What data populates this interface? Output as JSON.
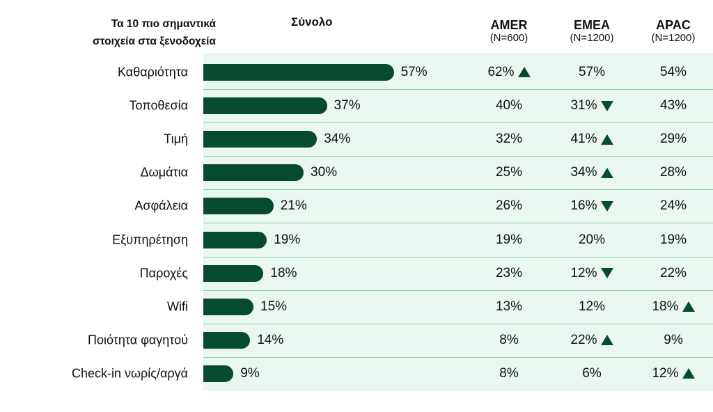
{
  "header": {
    "left_title_line1": "Τα 10 πιο σημαντικά",
    "left_title_line2": "στοιχεία στα ξενοδοχεία",
    "total_title": "Σύνολο",
    "regions": [
      {
        "name": "AMER",
        "n": "(N=600)"
      },
      {
        "name": "EMEA",
        "n": "(N=1200)"
      },
      {
        "name": "APAC",
        "n": "(N=1200)"
      }
    ]
  },
  "chart_data": {
    "type": "bar",
    "orientation": "horizontal",
    "title": "Σύνολο",
    "categories": [
      "Καθαριότητα",
      "Τοποθεσία",
      "Τιμή",
      "Δωμάτια",
      "Ασφάλεια",
      "Εξυπηρέτηση",
      "Παροχές",
      "Wifi",
      "Ποιότητα φαγητού",
      "Check-in νωρίς/αργά"
    ],
    "values": [
      57,
      37,
      34,
      30,
      21,
      19,
      18,
      15,
      14,
      9
    ],
    "value_labels": [
      "57%",
      "37%",
      "34%",
      "30%",
      "21%",
      "19%",
      "18%",
      "15%",
      "14%",
      "9%"
    ],
    "xlim": [
      0,
      60
    ],
    "bar_color": "#064a2f",
    "table_series": [
      {
        "name": "AMER",
        "values": [
          "62%",
          "40%",
          "32%",
          "25%",
          "26%",
          "19%",
          "23%",
          "13%",
          "8%",
          "8%"
        ],
        "markers": [
          "up",
          "",
          "",
          "",
          "",
          "",
          "",
          "",
          "",
          ""
        ]
      },
      {
        "name": "EMEA",
        "values": [
          "57%",
          "31%",
          "41%",
          "34%",
          "16%",
          "20%",
          "12%",
          "12%",
          "22%",
          "6%"
        ],
        "markers": [
          "",
          "down",
          "up",
          "up",
          "down",
          "",
          "down",
          "",
          "up",
          ""
        ]
      },
      {
        "name": "APAC",
        "values": [
          "54%",
          "43%",
          "29%",
          "28%",
          "24%",
          "19%",
          "22%",
          "18%",
          "9%",
          "12%"
        ],
        "markers": [
          "",
          "",
          "",
          "",
          "",
          "",
          "",
          "up",
          "",
          "up"
        ]
      }
    ]
  },
  "colors": {
    "bar": "#064a2f",
    "panel": "#e9f7f0",
    "separator": "#8cc9ac"
  }
}
